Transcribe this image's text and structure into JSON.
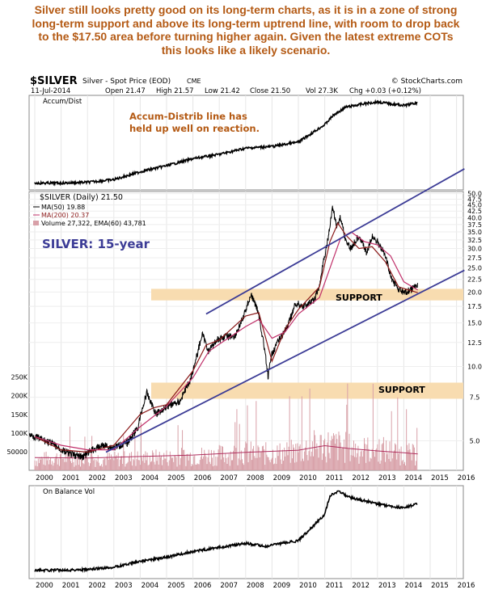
{
  "headline": [
    "Silver still looks pretty good on its long-term charts, as it is in a zone of strong",
    "long-term support and above its long-term uptrend line, with room to drop back",
    "to the $17.50 area before turning higher again. Given the latest extreme COTs",
    "this looks like a likely scenario."
  ],
  "header": {
    "symbol": "$SILVER",
    "name": "Silver - Spot Price (EOD)",
    "exchange": "CME",
    "credit": "© StockCharts.com",
    "date": "11-Jul-2014",
    "open": "Open 21.47",
    "high": "High 21.57",
    "low": "Low 21.42",
    "close": "Close 21.50",
    "volume": "Vol 27.3K",
    "change": "Chg +0.03 (+0.12%)"
  },
  "accum_panel": {
    "label": "Accum/Dist",
    "note_line1": "Accum-Distrib  line  has",
    "note_line2": "held up well on reaction."
  },
  "price_panel": {
    "legend_main": "$SILVER (Daily) 21.50",
    "legend_ma50": "MA(50) 19.88",
    "legend_ma200": "MA(200) 20.37",
    "legend_volume": "Volume 27,322, EMA(60) 43,781",
    "title_label": "SILVER: 15-year",
    "support_upper": "SUPPORT",
    "support_lower": "SUPPORT"
  },
  "obv_panel": {
    "label": "On Balance Vol"
  },
  "colors": {
    "headline": "#b45a14",
    "price": "#000000",
    "ma50": "#8b1a1a",
    "ma200": "#c0306a",
    "trendline": "#3c3c96",
    "support_band": "#f8dcb0",
    "volume": "#d8a0a8",
    "title_label": "#3c3c96",
    "note": "#b45a14"
  },
  "chart_data": [
    {
      "type": "line",
      "title": "Accum/Dist",
      "x": [
        2000.0,
        2001.0,
        2002.0,
        2003.0,
        2004.0,
        2005.0,
        2006.0,
        2007.0,
        2008.0,
        2009.0,
        2010.0,
        2010.5,
        2011.0,
        2011.3,
        2011.8,
        2012.5,
        2013.0,
        2013.5,
        2014.0,
        2014.5
      ],
      "values": [
        0.05,
        0.05,
        0.06,
        0.09,
        0.18,
        0.25,
        0.33,
        0.38,
        0.45,
        0.47,
        0.52,
        0.62,
        0.72,
        0.82,
        0.92,
        0.96,
        0.98,
        0.96,
        0.94,
        0.97
      ],
      "x_ticks": [
        "2000",
        "2001",
        "2002",
        "2003",
        "2004",
        "2005",
        "2006",
        "2007",
        "2008",
        "2009",
        "2010",
        "2011",
        "2012",
        "2013",
        "2014",
        "2015",
        "2016"
      ]
    },
    {
      "type": "line",
      "title": "$SILVER (Daily) 21.50",
      "scale": "log",
      "ylim": [
        3.8,
        51
      ],
      "y_ticks": [
        "5.0",
        "7.5",
        "10.0",
        "12.5",
        "15.0",
        "17.5",
        "20.0",
        "22.5",
        "25.0",
        "27.5",
        "30.0",
        "32.5",
        "35.0",
        "37.5",
        "40.0",
        "42.5",
        "45.0",
        "47.5",
        "50.0"
      ],
      "series": [
        {
          "name": "$SILVER (Daily) 21.50",
          "x": [
            1999.8,
            2000.2,
            2000.6,
            2001.0,
            2001.4,
            2001.8,
            2002.2,
            2002.6,
            2003.0,
            2003.5,
            2003.9,
            2004.25,
            2004.6,
            2005.0,
            2005.5,
            2005.9,
            2006.15,
            2006.35,
            2006.6,
            2006.9,
            2007.2,
            2007.6,
            2007.9,
            2008.2,
            2008.45,
            2008.7,
            2008.85,
            2009.0,
            2009.3,
            2009.6,
            2009.9,
            2010.2,
            2010.6,
            2010.8,
            2011.0,
            2011.15,
            2011.3,
            2011.45,
            2011.6,
            2011.8,
            2012.0,
            2012.3,
            2012.6,
            2012.8,
            2013.0,
            2013.3,
            2013.5,
            2013.8,
            2014.0,
            2014.3,
            2014.53
          ],
          "values": [
            5.3,
            5.1,
            4.9,
            4.6,
            4.4,
            4.3,
            4.6,
            4.8,
            4.7,
            4.9,
            5.6,
            7.8,
            6.4,
            6.9,
            7.2,
            8.8,
            11.0,
            13.5,
            11.5,
            12.8,
            13.2,
            13.3,
            15.6,
            19.5,
            17.0,
            12.0,
            9.0,
            11.3,
            13.0,
            14.5,
            18.0,
            17.5,
            18.5,
            21.0,
            28.0,
            34.0,
            44.0,
            37.0,
            40.0,
            32.0,
            30.0,
            34.0,
            28.5,
            33.5,
            32.0,
            28.0,
            23.0,
            20.5,
            19.8,
            20.5,
            21.5
          ]
        },
        {
          "name": "MA(50) 19.88",
          "x": [
            2000.0,
            2001.0,
            2002.0,
            2003.0,
            2004.0,
            2004.5,
            2005.0,
            2006.0,
            2006.5,
            2007.0,
            2008.0,
            2008.5,
            2009.0,
            2009.5,
            2010.0,
            2010.8,
            2011.2,
            2011.5,
            2011.8,
            2012.3,
            2012.8,
            2013.3,
            2013.8,
            2014.53
          ],
          "values": [
            5.2,
            4.6,
            4.5,
            4.8,
            6.4,
            6.8,
            7.0,
            9.6,
            12.2,
            12.8,
            16.0,
            16.5,
            10.5,
            14.2,
            17.0,
            21.0,
            32.0,
            38.0,
            34.0,
            30.0,
            30.5,
            26.5,
            21.0,
            19.88
          ]
        },
        {
          "name": "MA(200) 20.37",
          "x": [
            2000.0,
            2001.0,
            2002.0,
            2003.0,
            2004.0,
            2005.0,
            2006.0,
            2006.6,
            2007.0,
            2008.0,
            2008.5,
            2009.0,
            2009.5,
            2010.0,
            2010.8,
            2011.2,
            2011.6,
            2012.0,
            2012.5,
            2013.0,
            2013.5,
            2014.0,
            2014.53
          ],
          "values": [
            5.2,
            4.8,
            4.6,
            4.6,
            5.7,
            6.9,
            9.0,
            11.5,
            12.3,
            14.5,
            15.5,
            13.0,
            13.8,
            16.3,
            19.0,
            25.0,
            33.0,
            35.0,
            32.0,
            31.0,
            28.0,
            22.0,
            20.37
          ]
        }
      ],
      "trendline_upper": {
        "x": [
          2006.5,
          2016.3
        ],
        "values": [
          16.3,
          63.0
        ]
      },
      "trendline_lower": {
        "x": [
          2002.7,
          2016.3
        ],
        "values": [
          4.5,
          24.5
        ]
      },
      "support_zones": [
        [
          18.5,
          20.6
        ],
        [
          7.4,
          8.6
        ]
      ],
      "annotations": [
        "SUPPORT",
        "SUPPORT",
        "SILVER: 15-year"
      ]
    },
    {
      "type": "bar",
      "title": "Volume 27,322, EMA(60) 43,781",
      "y_ticks": [
        "50000",
        "100K",
        "150K",
        "200K",
        "250K"
      ],
      "ylim": [
        0,
        260000
      ],
      "x": [
        2000.0,
        2001.0,
        2002.0,
        2003.0,
        2004.0,
        2005.0,
        2006.0,
        2007.0,
        2008.0,
        2009.0,
        2010.0,
        2010.5,
        2011.0,
        2011.5,
        2012.0,
        2012.5,
        2013.0,
        2013.5,
        2014.0,
        2014.5
      ],
      "values": [
        30000,
        38000,
        35000,
        33000,
        36000,
        38000,
        42000,
        45000,
        52000,
        48000,
        56000,
        70000,
        75000,
        72000,
        65000,
        60000,
        64000,
        55000,
        50000,
        44000
      ],
      "ema": {
        "x": [
          2000.0,
          2002.0,
          2004.0,
          2006.0,
          2008.0,
          2010.0,
          2011.0,
          2012.0,
          2013.0,
          2014.0,
          2014.53
        ],
        "values": [
          34000,
          33000,
          37000,
          41000,
          48000,
          54000,
          66000,
          58000,
          52000,
          47000,
          43781
        ]
      }
    },
    {
      "type": "line",
      "title": "On Balance Vol",
      "x": [
        2000.0,
        2002.0,
        2003.0,
        2004.0,
        2005.0,
        2006.0,
        2007.0,
        2008.0,
        2008.8,
        2009.0,
        2010.0,
        2010.5,
        2011.0,
        2011.2,
        2011.5,
        2012.0,
        2013.0,
        2013.5,
        2014.0,
        2014.5
      ],
      "values": [
        0.04,
        0.05,
        0.08,
        0.15,
        0.2,
        0.27,
        0.32,
        0.37,
        0.33,
        0.35,
        0.4,
        0.56,
        0.72,
        0.95,
        1.0,
        0.92,
        0.85,
        0.82,
        0.8,
        0.85
      ],
      "x_ticks": [
        "2000",
        "2001",
        "2002",
        "2003",
        "2004",
        "2005",
        "2006",
        "2007",
        "2008",
        "2009",
        "2010",
        "2011",
        "2012",
        "2013",
        "2014",
        "2015",
        "2016"
      ]
    }
  ]
}
